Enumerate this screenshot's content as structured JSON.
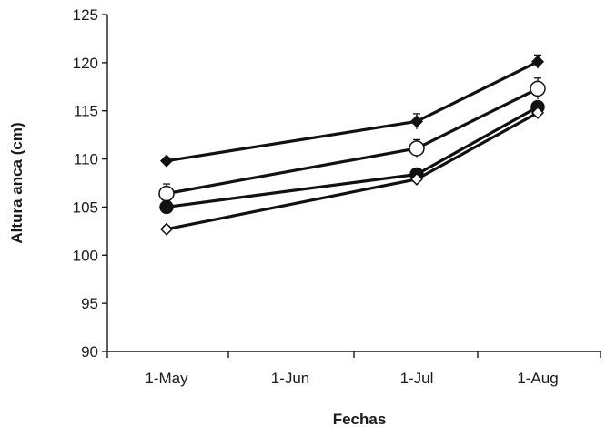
{
  "chart_data": {
    "type": "line",
    "xlabel": "Fechas",
    "ylabel": "Altura anca (cm)",
    "categories": [
      "1-May",
      "1-Jun",
      "1-Jul",
      "1-Aug"
    ],
    "ylim": [
      90,
      125
    ],
    "yticks": [
      90,
      95,
      100,
      105,
      110,
      115,
      120,
      125
    ],
    "grid": false,
    "series": [
      {
        "marker": "filled-diamond",
        "x": [
          "1-May",
          "1-Jul",
          "1-Aug"
        ],
        "values": [
          109.8,
          113.9,
          120.1
        ],
        "errors": [
          0.3,
          0.8,
          0.7
        ]
      },
      {
        "marker": "open-circle",
        "x": [
          "1-May",
          "1-Jul",
          "1-Aug"
        ],
        "values": [
          106.4,
          111.1,
          117.3
        ],
        "errors": [
          1.0,
          0.9,
          1.1
        ]
      },
      {
        "marker": "filled-circle",
        "x": [
          "1-May",
          "1-Jul",
          "1-Aug"
        ],
        "values": [
          105.0,
          108.4,
          115.4
        ],
        "errors": [
          0.4,
          0.5,
          0.5
        ]
      },
      {
        "marker": "open-diamond",
        "x": [
          "1-May",
          "1-Jul",
          "1-Aug"
        ],
        "values": [
          102.7,
          107.9,
          114.8
        ],
        "errors": [
          0.3,
          0.3,
          0.3
        ]
      }
    ]
  }
}
